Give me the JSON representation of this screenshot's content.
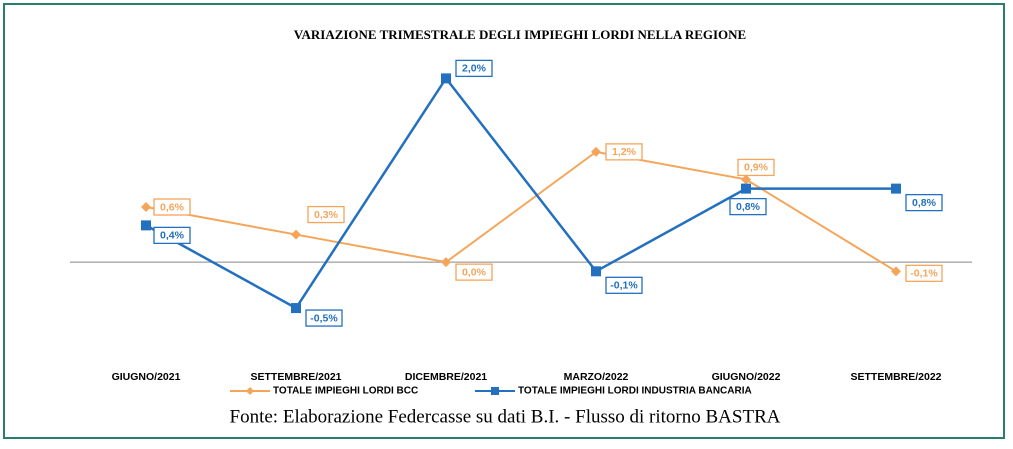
{
  "chart_data": {
    "type": "line",
    "title": "VARIAZIONE TRIMESTRALE DEGLI IMPIEGHI LORDI NELLA REGIONE",
    "categories": [
      "GIUGNO/2021",
      "SETTEMBRE/2021",
      "DICEMBRE/2021",
      "MARZO/2022",
      "GIUGNO/2022",
      "SETTEMBRE/2022"
    ],
    "series": [
      {
        "name": "TOTALE IMPIEGHI LORDI BCC",
        "color": "#f5a55a",
        "marker": "diamond",
        "values": [
          0.6,
          0.3,
          0.0,
          1.2,
          0.9,
          -0.1
        ],
        "value_labels": [
          "0,6%",
          "0,3%",
          "0,0%",
          "1,2%",
          "0,9%",
          "-0,1%"
        ]
      },
      {
        "name": "TOTALE IMPIEGHI LORDI INDUSTRIA BANCARIA",
        "color": "#2270bf",
        "marker": "square",
        "values": [
          0.4,
          -0.5,
          2.0,
          -0.1,
          0.8,
          0.8
        ],
        "value_labels": [
          "0,4%",
          "-0,5%",
          "2,0%",
          "-0,1%",
          "0,8%",
          "0,8%"
        ]
      }
    ],
    "ylim": [
      -1.0,
      2.2
    ],
    "source": "Fonte: Elaborazione Federcasse su dati B.I. - Flusso di ritorno BASTRA"
  }
}
